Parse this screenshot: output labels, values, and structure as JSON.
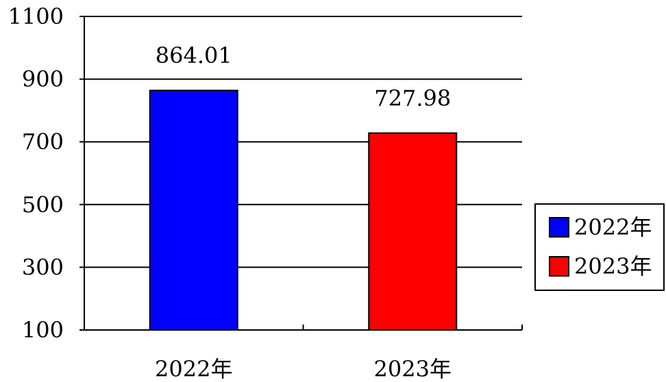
{
  "chart_data": {
    "type": "bar",
    "categories": [
      "2022年",
      "2023年"
    ],
    "series": [
      {
        "name": "2022年",
        "values": [
          864.01,
          null
        ],
        "color": "#0000FF"
      },
      {
        "name": "2023年",
        "values": [
          null,
          727.98
        ],
        "color": "#FF0000"
      }
    ],
    "data_labels": [
      "864.01",
      "727.98"
    ],
    "yticks": [
      "100",
      "300",
      "500",
      "700",
      "900",
      "1100"
    ],
    "ylim": [
      100,
      1100
    ],
    "grid": true,
    "legend_position": "right",
    "title": "",
    "xlabel": "",
    "ylabel": ""
  }
}
